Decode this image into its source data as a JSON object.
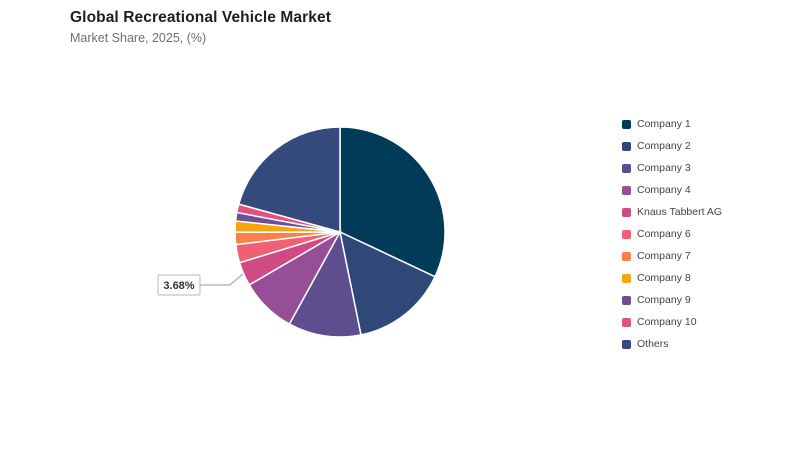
{
  "chart_data": {
    "type": "pie",
    "title": "Global Recreational Vehicle Market",
    "subtitle": "Market Share, 2025, (%)",
    "slices": [
      {
        "label": "Company 1",
        "value": 32.0,
        "color": "#003b57"
      },
      {
        "label": "Company 2",
        "value": 14.8,
        "color": "#2f4877"
      },
      {
        "label": "Company 3",
        "value": 11.2,
        "color": "#5e4e8f"
      },
      {
        "label": "Company 4",
        "value": 8.6,
        "color": "#964f97"
      },
      {
        "label": "Knaus Tabbert AG",
        "value": 3.68,
        "color": "#d04a84",
        "data_label": "3.68%"
      },
      {
        "label": "Company 6",
        "value": 2.8,
        "color": "#f06075"
      },
      {
        "label": "Company 7",
        "value": 1.9,
        "color": "#fb7f4a"
      },
      {
        "label": "Company 8",
        "value": 1.7,
        "color": "#f5a50f"
      },
      {
        "label": "Company 9",
        "value": 1.3,
        "color": "#6d4f96"
      },
      {
        "label": "Company 10",
        "value": 1.3,
        "color": "#e2507e"
      },
      {
        "label": "Others",
        "value": 20.72,
        "color": "#344a7c"
      }
    ],
    "legend_position": "right"
  }
}
